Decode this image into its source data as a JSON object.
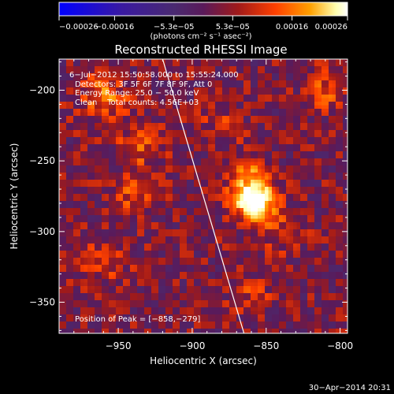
{
  "chart_data": {
    "type": "heatmap",
    "title": "Reconstructed RHESSI Image",
    "xlabel": "Heliocentric X (arcsec)",
    "ylabel": "Heliocentric Y (arcsec)",
    "xlim": [
      -990,
      -795
    ],
    "ylim": [
      -372,
      -178
    ],
    "x_ticks": [
      -950,
      -900,
      -850,
      -800
    ],
    "y_ticks": [
      -200,
      -250,
      -300,
      -350
    ],
    "x_tick_labels": [
      "−950",
      "−900",
      "−850",
      "−800"
    ],
    "y_tick_labels": [
      "−200",
      "−250",
      "−300",
      "−350"
    ],
    "colorbar": {
      "tick_values": [
        -0.00026,
        -0.00016,
        -5.3e-05,
        5.3e-05,
        0.00016,
        0.00026
      ],
      "tick_labels": [
        "−0.00026",
        "−0.00016",
        "−5.3e−05",
        "5.3e−05",
        "0.00016",
        "0.00026"
      ],
      "unit_label": "(photons cm⁻² s⁻¹ asec⁻²)",
      "range": [
        -0.00026,
        0.00026
      ]
    },
    "annotations": {
      "time_range": "6−Jul−2012 15:50:58.000 to 15:55:24.000",
      "detectors": "Detectors: 3F 5F 6F 7F 8F 9F, Att 0",
      "energy_range": "Energy Range: 25.0 − 50.0 keV",
      "method_counts": "Clean    Total counts: 4.56E+03",
      "peak": "Position of Peak = [−858,−279]"
    },
    "peak_position": [
      -858,
      -279
    ],
    "limb_line": [
      [
        -920,
        -178
      ],
      [
        -865,
        -372
      ]
    ],
    "sources": [
      {
        "x": -858,
        "y": -279,
        "amp": 1.0,
        "sigma": 9
      },
      {
        "x": -862,
        "y": -262,
        "amp": 0.45,
        "sigma": 10
      },
      {
        "x": -840,
        "y": -300,
        "amp": 0.25,
        "sigma": 10
      },
      {
        "x": -960,
        "y": -205,
        "amp": 0.4,
        "sigma": 12
      },
      {
        "x": -935,
        "y": -240,
        "amp": 0.35,
        "sigma": 10
      },
      {
        "x": -940,
        "y": -275,
        "amp": 0.3,
        "sigma": 10
      },
      {
        "x": -960,
        "y": -320,
        "amp": 0.25,
        "sigma": 12
      },
      {
        "x": -810,
        "y": -200,
        "amp": 0.3,
        "sigma": 10
      },
      {
        "x": -860,
        "y": -345,
        "amp": 0.2,
        "sigma": 10
      },
      {
        "x": -880,
        "y": -225,
        "amp": 0.2,
        "sigma": 10
      }
    ],
    "colors": {
      "background": "#000000",
      "limb_line": "#ffffff",
      "colormap": [
        "#0000ff",
        "#3a1aa0",
        "#4a2a70",
        "#5a1a5a",
        "#a01a1a",
        "#ff4000",
        "#ffa000",
        "#ffffb0",
        "#ffffff"
      ]
    }
  },
  "footer": {
    "timestamp": "30−Apr−2014 20:31"
  }
}
